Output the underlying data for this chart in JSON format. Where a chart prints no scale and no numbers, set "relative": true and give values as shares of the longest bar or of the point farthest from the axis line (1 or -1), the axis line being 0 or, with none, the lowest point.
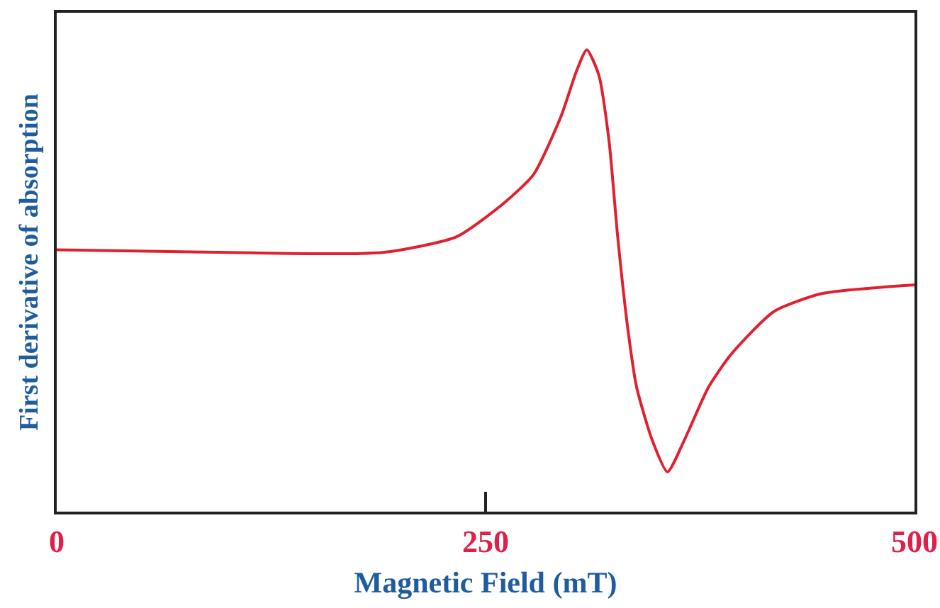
{
  "chart_data": {
    "type": "line",
    "xlabel": "Magnetic Field (mT)",
    "ylabel": "First derivative of absorption",
    "relative": true,
    "xlim": [
      0,
      500
    ],
    "xticks": [
      0,
      250,
      500
    ],
    "grid": false,
    "marker": "none",
    "line_style": "solid",
    "x": [
      0,
      100,
      190,
      233,
      261,
      278,
      294,
      303,
      309,
      316,
      322,
      327,
      333,
      338,
      347,
      356,
      366,
      380,
      393,
      418,
      446,
      500
    ],
    "series": [
      {
        "color": "#e0202e",
        "values": [
          0.567,
          0.561,
          0.561,
          0.595,
          0.669,
          0.73,
          0.856,
          0.954,
          1,
          0.945,
          0.801,
          0.595,
          0.393,
          0.27,
          0.156,
          0.086,
          0.156,
          0.27,
          0.34,
          0.433,
          0.472,
          0.491
        ]
      }
    ]
  }
}
